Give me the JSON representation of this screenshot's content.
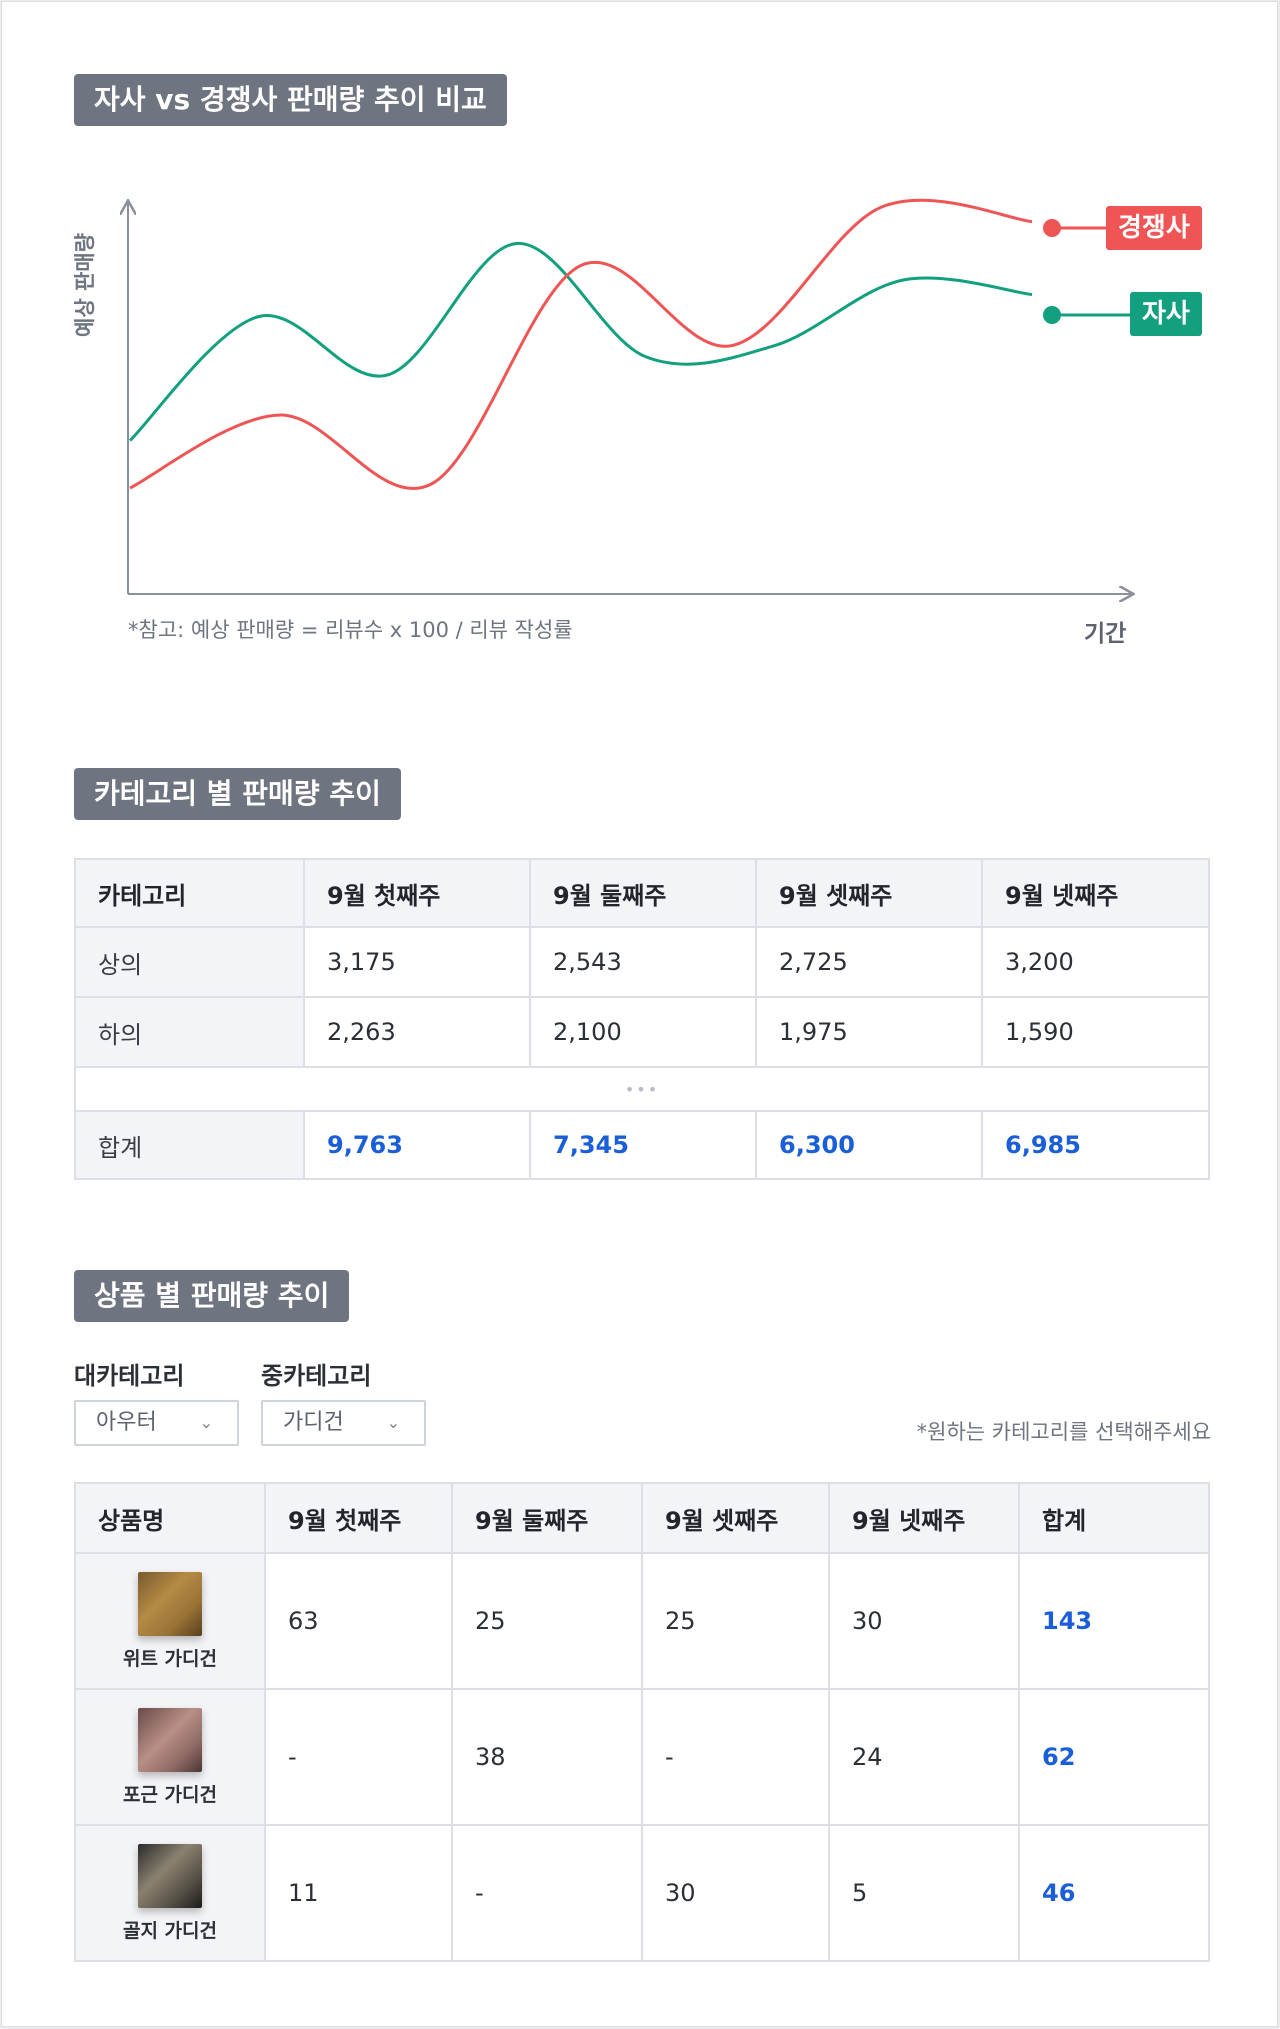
{
  "sections": {
    "trend_title": "자사 vs 경쟁사 판매량 추이 비교",
    "category_title": "카테고리 별 판매량 추이",
    "product_title": "상품 별 판매량 추이"
  },
  "chart_data": {
    "type": "line",
    "title": "자사 vs 경쟁사 판매량 추이 비교",
    "xlabel": "기간",
    "ylabel": "예상 판매량",
    "note": "*참고: 예상 판매량 = 리뷰수 x 100 / 리뷰 작성률",
    "grid": false,
    "legend": "right-inline",
    "series": [
      {
        "name": "자사",
        "color": "#12a07e",
        "values": [
          3.6,
          7.0,
          5.4,
          9.0,
          5.9,
          6.2,
          8.0,
          7.6
        ]
      },
      {
        "name": "경쟁사",
        "color": "#ef5555",
        "values": [
          2.3,
          4.3,
          2.4,
          8.4,
          6.2,
          10.0,
          9.6
        ]
      }
    ]
  },
  "category_table": {
    "headers": [
      "카테고리",
      "9월 첫째주",
      "9월 둘째주",
      "9월 셋째주",
      "9월 넷째주"
    ],
    "rows": [
      {
        "name": "상의",
        "values": [
          "3,175",
          "2,543",
          "2,725",
          "3,200"
        ]
      },
      {
        "name": "하의",
        "values": [
          "2,263",
          "2,100",
          "1,975",
          "1,590"
        ]
      }
    ],
    "ellipsis": "•••",
    "total": {
      "name": "합계",
      "values": [
        "9,763",
        "7,345",
        "6,300",
        "6,985"
      ]
    }
  },
  "filters": {
    "major_label": "대카테고리",
    "major_value": "아우터",
    "minor_label": "중카테고리",
    "minor_value": "가디건",
    "hint": "*원하는 카테고리를 선택해주세요"
  },
  "product_table": {
    "headers": [
      "상품명",
      "9월 첫째주",
      "9월 둘째주",
      "9월 셋째주",
      "9월 넷째주",
      "합계"
    ],
    "rows": [
      {
        "name": "위트 가디건",
        "values": [
          "63",
          "25",
          "25",
          "30"
        ],
        "total": "143"
      },
      {
        "name": "포근 가디건",
        "values": [
          "-",
          "38",
          "-",
          "24"
        ],
        "total": "62"
      },
      {
        "name": "골지 가디건",
        "values": [
          "11",
          "-",
          "30",
          "5"
        ],
        "total": "46"
      }
    ]
  }
}
